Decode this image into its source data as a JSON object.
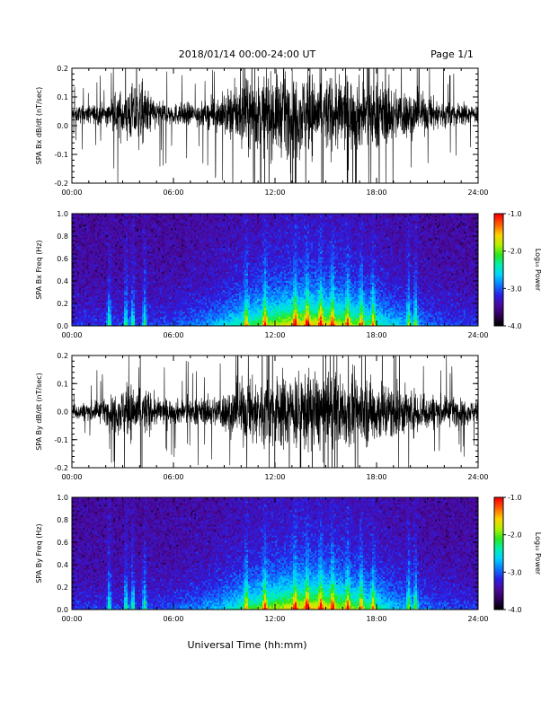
{
  "header": {
    "title": "2018/01/14  00:00-24:00 UT",
    "page": "Page 1/1"
  },
  "xlabel": "Universal Time (hh:mm)",
  "colors": {
    "waveform": "#000000",
    "spectrogram_colormap": [
      "#000000",
      "#30005a",
      "#4b0a9e",
      "#2a1fe6",
      "#0a78ff",
      "#00d2ff",
      "#00f0b0",
      "#28e61e",
      "#b4f000",
      "#ffd200",
      "#ff6400",
      "#ff0000"
    ]
  },
  "chart_data": [
    {
      "type": "line",
      "ylabel": "SPA Bx dB/dt (nT/sec)",
      "xlim": [
        0,
        24
      ],
      "x_ticks": [
        "00:00",
        "06:00",
        "12:00",
        "18:00",
        "24:00"
      ],
      "ylim": [
        -0.2,
        0.2
      ],
      "y_ticks": [
        "-0.2",
        "-0.1",
        "0.0",
        "0.1",
        "0.2"
      ],
      "baseline": 0.04,
      "envelope": [
        [
          0,
          0.05
        ],
        [
          2,
          0.07
        ],
        [
          3,
          0.16
        ],
        [
          4,
          0.22
        ],
        [
          5,
          0.09
        ],
        [
          6,
          0.07
        ],
        [
          8,
          0.08
        ],
        [
          9,
          0.14
        ],
        [
          10,
          0.22
        ],
        [
          12,
          0.26
        ],
        [
          14,
          0.26
        ],
        [
          16,
          0.24
        ],
        [
          18,
          0.22
        ],
        [
          20,
          0.15
        ],
        [
          22,
          0.09
        ],
        [
          24,
          0.06
        ]
      ]
    },
    {
      "type": "heatmap",
      "ylabel": "SPA Bx Freq (Hz)",
      "xlim": [
        0,
        24
      ],
      "x_ticks": [
        "00:00",
        "06:00",
        "12:00",
        "18:00",
        "24:00"
      ],
      "ylim": [
        0,
        1
      ],
      "y_ticks": [
        "0.0",
        "0.2",
        "0.4",
        "0.6",
        "0.8",
        "1.0"
      ],
      "colorbar": {
        "label": "Log₁₀ Power",
        "range": [
          -4.0,
          -1.0
        ],
        "ticks": [
          "-4.0",
          "-3.0",
          "-2.0",
          "-1.0"
        ]
      },
      "bursts_hours": [
        2.2,
        3.2,
        3.6,
        4.3,
        10.3,
        11.4,
        13.2,
        13.9,
        14.7,
        15.4,
        16.3,
        17.1,
        17.8,
        19.9,
        20.3
      ]
    },
    {
      "type": "line",
      "ylabel": "SPA By dB/dt (nT/sec)",
      "xlim": [
        0,
        24
      ],
      "x_ticks": [
        "00:00",
        "06:00",
        "12:00",
        "18:00",
        "24:00"
      ],
      "ylim": [
        -0.2,
        0.2
      ],
      "y_ticks": [
        "-0.2",
        "-0.1",
        "0.0",
        "0.1",
        "0.2"
      ],
      "baseline": 0.0,
      "envelope": [
        [
          0,
          0.05
        ],
        [
          2,
          0.08
        ],
        [
          3,
          0.16
        ],
        [
          4,
          0.2
        ],
        [
          5,
          0.09
        ],
        [
          6,
          0.08
        ],
        [
          8,
          0.09
        ],
        [
          9,
          0.13
        ],
        [
          10,
          0.2
        ],
        [
          12,
          0.25
        ],
        [
          14,
          0.26
        ],
        [
          16,
          0.24
        ],
        [
          18,
          0.22
        ],
        [
          20,
          0.15
        ],
        [
          22,
          0.1
        ],
        [
          24,
          0.07
        ]
      ]
    },
    {
      "type": "heatmap",
      "ylabel": "SPA By Freq (Hz)",
      "xlim": [
        0,
        24
      ],
      "x_ticks": [
        "00:00",
        "06:00",
        "12:00",
        "18:00",
        "24:00"
      ],
      "ylim": [
        0,
        1
      ],
      "y_ticks": [
        "0.0",
        "0.2",
        "0.4",
        "0.6",
        "0.8",
        "1.0"
      ],
      "colorbar": {
        "label": "Log₁₀ Power",
        "range": [
          -4.0,
          -1.0
        ],
        "ticks": [
          "-4.0",
          "-3.0",
          "-2.0",
          "-1.0"
        ]
      },
      "bursts_hours": [
        2.2,
        3.2,
        3.6,
        4.3,
        10.3,
        11.4,
        13.2,
        13.9,
        14.7,
        15.4,
        16.3,
        17.1,
        17.8,
        19.9,
        20.3
      ]
    }
  ]
}
